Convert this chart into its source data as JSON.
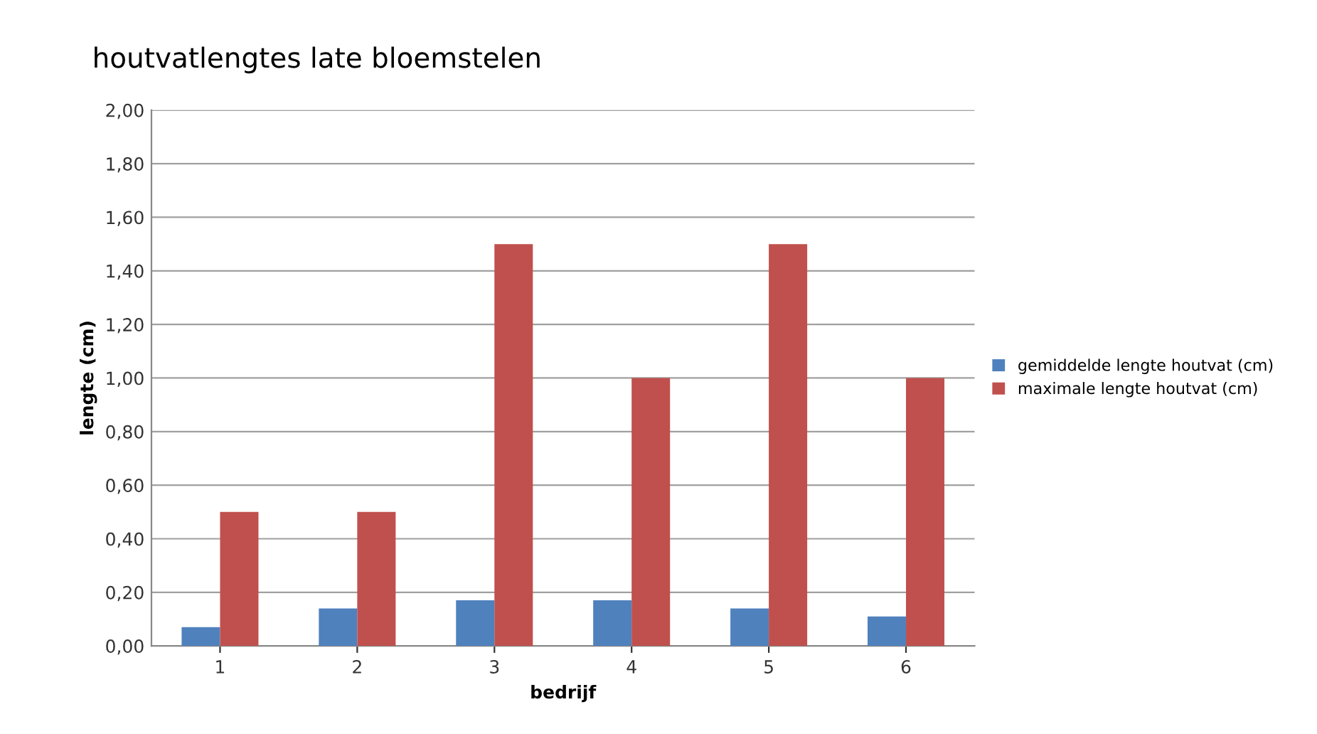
{
  "chart_data": {
    "type": "bar",
    "title": "houtvatlengtes late bloemstelen",
    "xlabel": "bedrijf",
    "ylabel": "lengte (cm)",
    "categories": [
      "1",
      "2",
      "3",
      "4",
      "5",
      "6"
    ],
    "series": [
      {
        "name": "gemiddelde lengte houtvat (cm)",
        "color": "#4f81bd",
        "values": [
          0.07,
          0.14,
          0.17,
          0.17,
          0.14,
          0.11
        ]
      },
      {
        "name": "maximale lengte houtvat (cm)",
        "color": "#c0504d",
        "values": [
          0.5,
          0.5,
          1.5,
          1.0,
          1.5,
          1.0
        ]
      }
    ],
    "ylim": [
      0,
      2
    ],
    "yticks": [
      {
        "value": 0,
        "label": "0,00"
      },
      {
        "value": 0.2,
        "label": "0,20"
      },
      {
        "value": 0.4,
        "label": "0,40"
      },
      {
        "value": 0.6,
        "label": "0,60"
      },
      {
        "value": 0.8,
        "label": "0,80"
      },
      {
        "value": 1.0,
        "label": "1,00"
      },
      {
        "value": 1.2,
        "label": "1,20"
      },
      {
        "value": 1.4,
        "label": "1,40"
      },
      {
        "value": 1.6,
        "label": "1,60"
      },
      {
        "value": 1.8,
        "label": "1,80"
      },
      {
        "value": 2.0,
        "label": "2,00"
      }
    ],
    "grid": "y",
    "legend": "right"
  }
}
